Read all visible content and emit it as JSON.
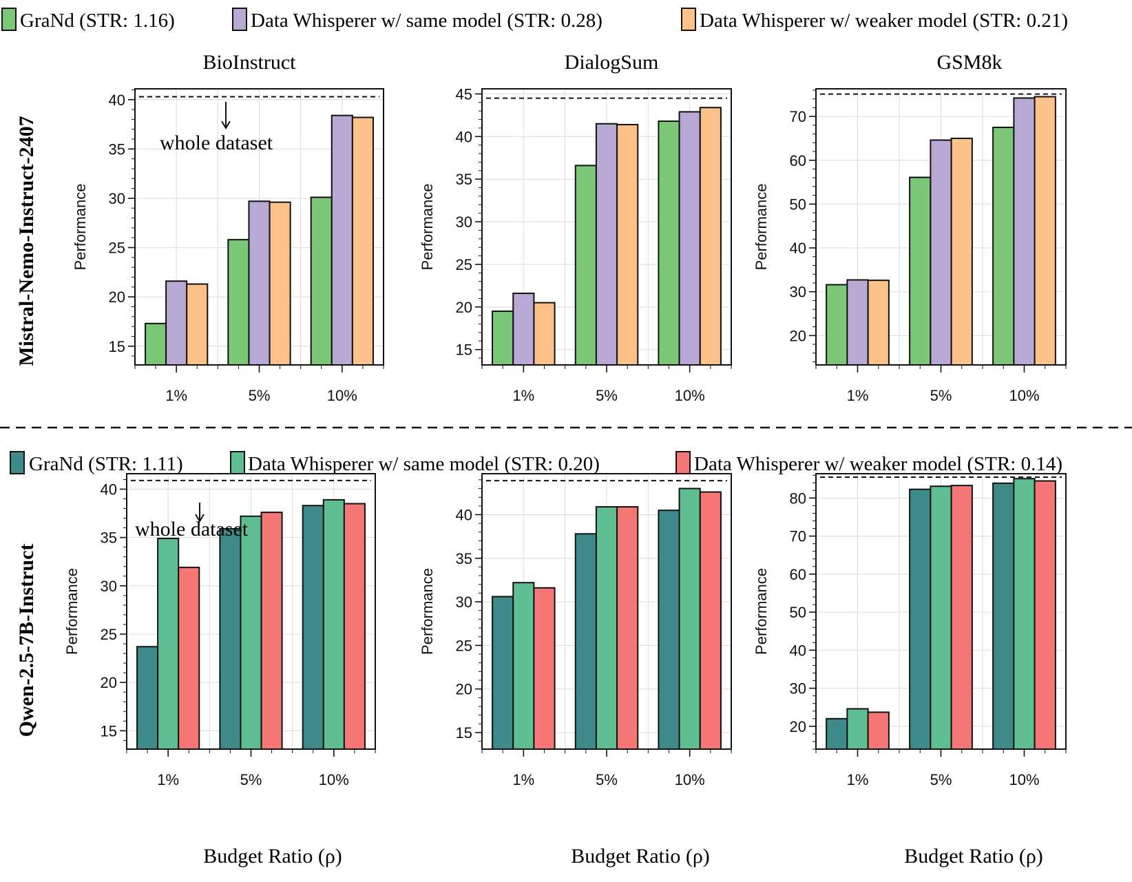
{
  "rows": [
    {
      "row_label": "Mistral-Nemo-Instruct-2407",
      "legend": [
        {
          "label": "GraNd (STR: 1.16)",
          "color": "#7dc878"
        },
        {
          "label": "Data Whisperer w/ same model (STR: 0.28)",
          "color": "#b8a9d4"
        },
        {
          "label": "Data Whisperer w/ weaker model (STR: 0.21)",
          "color": "#fcc189"
        }
      ]
    },
    {
      "row_label": "Qwen-2.5-7B-Instruct",
      "legend": [
        {
          "label": "GraNd (STR: 1.11)",
          "color": "#3e8a8a"
        },
        {
          "label": "Data Whisperer w/ same model (STR: 0.20)",
          "color": "#5fbf92"
        },
        {
          "label": "Data Whisperer w/ weaker model (STR: 0.14)",
          "color": "#f67876"
        }
      ]
    }
  ],
  "annotation": "whole dataset",
  "xlabel_shared": "Budget Ratio (ρ)",
  "chart_data": [
    {
      "type": "bar",
      "row": 0,
      "col": 0,
      "title": "BioInstruct",
      "xlabel": "",
      "ylabel": "Performance",
      "categories": [
        "1%",
        "5%",
        "10%"
      ],
      "ylim": [
        13.1,
        41.1
      ],
      "yticks": [
        "15",
        "20",
        "25",
        "30",
        "35",
        "40"
      ],
      "reference_line": {
        "label": "whole dataset",
        "value": 40.3
      },
      "series": [
        {
          "name": "GraNd",
          "values": [
            17.3,
            25.8,
            30.1
          ]
        },
        {
          "name": "Data Whisperer w/ same model",
          "values": [
            21.6,
            29.7,
            38.4
          ]
        },
        {
          "name": "Data Whisperer w/ weaker model",
          "values": [
            21.3,
            29.6,
            38.2
          ]
        }
      ]
    },
    {
      "type": "bar",
      "row": 0,
      "col": 1,
      "title": "DialogSum",
      "xlabel": "",
      "ylabel": "Performance",
      "categories": [
        "1%",
        "5%",
        "10%"
      ],
      "ylim": [
        13.2,
        45.6
      ],
      "yticks": [
        "15",
        "20",
        "25",
        "30",
        "35",
        "40",
        "45"
      ],
      "reference_line": {
        "label": "whole dataset",
        "value": 44.5
      },
      "series": [
        {
          "name": "GraNd",
          "values": [
            19.5,
            36.6,
            41.8
          ]
        },
        {
          "name": "Data Whisperer w/ same model",
          "values": [
            21.6,
            41.5,
            42.9
          ]
        },
        {
          "name": "Data Whisperer w/ weaker model",
          "values": [
            20.5,
            41.4,
            43.4
          ]
        }
      ]
    },
    {
      "type": "bar",
      "row": 0,
      "col": 2,
      "title": "GSM8k",
      "xlabel": "",
      "ylabel": "Performance",
      "categories": [
        "1%",
        "5%",
        "10%"
      ],
      "ylim": [
        13.3,
        76.3
      ],
      "yticks": [
        "20",
        "30",
        "40",
        "50",
        "60",
        "70"
      ],
      "reference_line": {
        "label": "whole dataset",
        "value": 75.1
      },
      "series": [
        {
          "name": "GraNd",
          "values": [
            31.6,
            56.1,
            67.5
          ]
        },
        {
          "name": "Data Whisperer w/ same model",
          "values": [
            32.7,
            64.6,
            74.2
          ]
        },
        {
          "name": "Data Whisperer w/ weaker model",
          "values": [
            32.6,
            65.0,
            74.5
          ]
        }
      ]
    },
    {
      "type": "bar",
      "row": 1,
      "col": 0,
      "title": "",
      "xlabel": "Budget Ratio (ρ)",
      "ylabel": "Performance",
      "categories": [
        "1%",
        "5%",
        "10%"
      ],
      "ylim": [
        13.1,
        41.6
      ],
      "yticks": [
        "15",
        "20",
        "25",
        "30",
        "35",
        "40"
      ],
      "reference_line": {
        "label": "whole dataset",
        "value": 40.9
      },
      "series": [
        {
          "name": "GraNd",
          "values": [
            23.7,
            35.9,
            38.3
          ]
        },
        {
          "name": "Data Whisperer w/ same model",
          "values": [
            34.9,
            37.2,
            38.9
          ]
        },
        {
          "name": "Data Whisperer w/ weaker model",
          "values": [
            31.9,
            37.6,
            38.5
          ]
        }
      ]
    },
    {
      "type": "bar",
      "row": 1,
      "col": 1,
      "title": "",
      "xlabel": "Budget Ratio (ρ)",
      "ylabel": "Performance",
      "categories": [
        "1%",
        "5%",
        "10%"
      ],
      "ylim": [
        13.1,
        44.7
      ],
      "yticks": [
        "15",
        "20",
        "25",
        "30",
        "35",
        "40"
      ],
      "reference_line": {
        "label": "whole dataset",
        "value": 43.9
      },
      "series": [
        {
          "name": "GraNd",
          "values": [
            30.6,
            37.8,
            40.5
          ]
        },
        {
          "name": "Data Whisperer w/ same model",
          "values": [
            32.2,
            40.9,
            43.0
          ]
        },
        {
          "name": "Data Whisperer w/ weaker model",
          "values": [
            31.6,
            40.9,
            42.6
          ]
        }
      ]
    },
    {
      "type": "bar",
      "row": 1,
      "col": 2,
      "title": "",
      "xlabel": "Budget Ratio (ρ)",
      "ylabel": "Performance",
      "categories": [
        "1%",
        "5%",
        "10%"
      ],
      "ylim": [
        14.0,
        86.4
      ],
      "yticks": [
        "20",
        "30",
        "40",
        "50",
        "60",
        "70",
        "80"
      ],
      "reference_line": {
        "label": "whole dataset",
        "value": 85.5
      },
      "series": [
        {
          "name": "GraNd",
          "values": [
            22.0,
            82.3,
            83.9
          ]
        },
        {
          "name": "Data Whisperer w/ same model",
          "values": [
            24.6,
            83.1,
            85.1
          ]
        },
        {
          "name": "Data Whisperer w/ weaker model",
          "values": [
            23.7,
            83.3,
            84.5
          ]
        }
      ]
    }
  ]
}
